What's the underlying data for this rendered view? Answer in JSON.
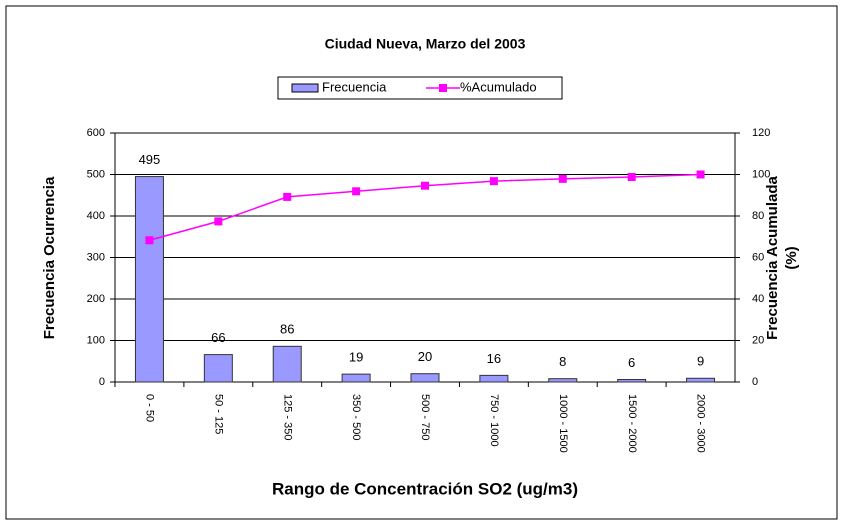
{
  "chart_data": {
    "type": "bar",
    "title": "Ciudad Nueva, Marzo del 2003",
    "x_label": "Rango de Concentración SO2 (ug/m3)",
    "y_label": "Frecuencia Ocurrencia",
    "y2_label": [
      "Frecuencia Acumulada",
      "(%)"
    ],
    "categories": [
      "0 - 50",
      "50 - 125",
      "125 - 350",
      "350 - 500",
      "500 - 750",
      "750 - 1000",
      "1000 - 1500",
      "1500 - 2000",
      "2000 - 3000"
    ],
    "series": [
      {
        "name": "Frecuencia",
        "color": "#9999ff",
        "values": [
          495,
          66,
          86,
          19,
          20,
          16,
          8,
          6,
          9
        ],
        "data_labels": true
      },
      {
        "name": "%Acumulado",
        "color": "#ff00ff",
        "type": "line",
        "axis": "y2",
        "values": [
          68.3,
          77.4,
          89.2,
          91.9,
          94.6,
          96.8,
          97.9,
          98.8,
          100
        ]
      }
    ],
    "ylim": [
      0,
      600
    ],
    "yticks": [
      0,
      100,
      200,
      300,
      400,
      500,
      600
    ],
    "y2lim": [
      0,
      120
    ],
    "y2ticks": [
      0,
      20,
      40,
      60,
      80,
      100,
      120
    ],
    "grid": true
  }
}
